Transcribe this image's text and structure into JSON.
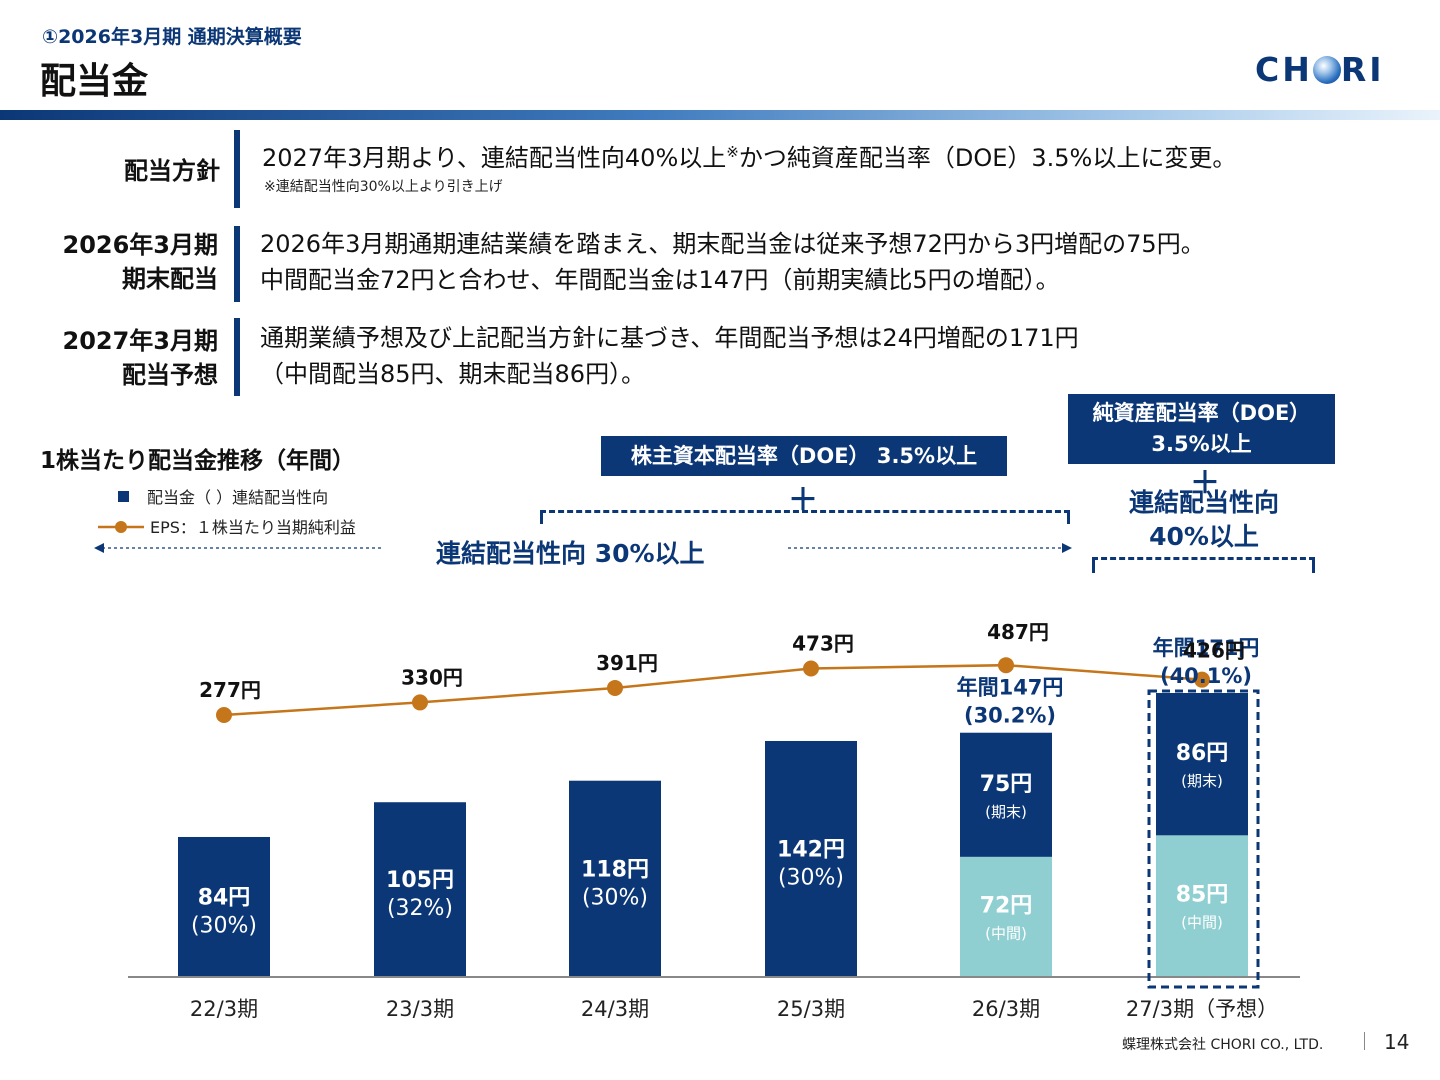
{
  "header": {
    "subtitle": "①2026年3月期 通期決算概要",
    "title": "配当金",
    "logo_left": "CH",
    "logo_right": "RI"
  },
  "policy": [
    {
      "label_lines": [
        "配当方針"
      ],
      "text_main": "2027年3月期より、連結配当性向40%以上",
      "text_sup": "※",
      "text_after": "かつ純資産配当率（DOE）3.5%以上に変更。",
      "note": "※連結配当性向30%以上より引き上げ"
    },
    {
      "label_lines": [
        "2026年3月期",
        "期末配当"
      ],
      "lines": [
        "2026年3月期通期連結業績を踏まえ、期末配当金は従来予想72円から3円増配の75円。",
        "中間配当金72円と合わせ、年間配当金は147円（前期実績比5円の増配）。"
      ]
    },
    {
      "label_lines": [
        "2027年3月期",
        "配当予想"
      ],
      "lines": [
        "通期業績予想及び上記配当方針に基づき、年間配当予想は24円増配の171円",
        "（中間配当85円、期末配当86円）。"
      ]
    }
  ],
  "chart_heading": "1株当たり配当金推移（年間）",
  "legend": {
    "bar": "配当金（ ）連結配当性向",
    "line": "EPS：１株当たり当期純利益"
  },
  "annotations": {
    "doe_box": "株主資本配当率（DOE） 3.5%以上",
    "plus": "＋",
    "payout30": "連結配当性向 30%以上",
    "new_box_line1": "純資産配当率（DOE）",
    "new_box_line2": "3.5%以上",
    "payout40_line1": "連結配当性向",
    "payout40_line2": "40%以上"
  },
  "colors": {
    "navy": "#0c3776",
    "teal": "#8fcfd1",
    "eps": "#c5761a",
    "axis": "#888888"
  },
  "chart_data": {
    "type": "bar",
    "categories": [
      "22/3期",
      "23/3期",
      "24/3期",
      "25/3期",
      "26/3期",
      "27/3期（予想）"
    ],
    "series": [
      {
        "values": [
          84,
          105,
          118,
          142,
          72,
          85
        ]
      },
      {
        "values": [
          null,
          null,
          null,
          null,
          75,
          86
        ]
      },
      {
        "name": "EPS",
        "type": "line",
        "values": [
          277,
          330,
          391,
          473,
          487,
          426
        ]
      }
    ],
    "payout_ratio_labels": [
      "(30%)",
      "(32%)",
      "(30%)",
      "(30%)",
      "(30.2%)",
      "(40.1%)"
    ],
    "bar_labels": [
      "84円",
      "105円",
      "118円",
      "142円",
      "",
      ""
    ],
    "stack_labels": {
      "interim": [
        "72円",
        "85円"
      ],
      "yearend": [
        "75円",
        "86円"
      ],
      "interim_tag": "(中間)",
      "yearend_tag": "(期末)"
    },
    "totals": [
      {
        "line1": "年間147円",
        "line2": "(30.2%)"
      },
      {
        "line1": "年間171円",
        "line2": "(40.1%)"
      }
    ],
    "eps_labels": [
      "277円",
      "330円",
      "391円",
      "473円",
      "487円",
      "426円"
    ],
    "ylim": [
      0,
      200
    ],
    "eps_ylim": [
      0,
      600
    ]
  },
  "footer": {
    "company": "蝶理株式会社 CHORI CO., LTD.",
    "page": "14"
  }
}
